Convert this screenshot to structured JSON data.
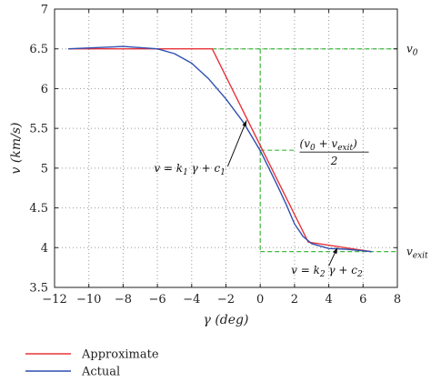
{
  "chart_data": {
    "type": "line",
    "xlabel": "γ (deg)",
    "ylabel": "v (km/s)",
    "xlim": [
      -12,
      8
    ],
    "ylim": [
      3.5,
      7
    ],
    "xticks": [
      -12,
      -10,
      -8,
      -6,
      -4,
      -2,
      0,
      2,
      4,
      6,
      8
    ],
    "yticks": [
      3.5,
      4,
      4.5,
      5,
      5.5,
      6,
      6.5,
      7
    ],
    "grid": true,
    "legend_position": "bottom-left, below plot",
    "series": [
      {
        "name": "Approximate",
        "color": "#e8333a",
        "x": [
          -11.2,
          -2.8,
          2.8,
          6.5
        ],
        "y": [
          6.5,
          6.5,
          4.07,
          3.95
        ]
      },
      {
        "name": "Actual",
        "color": "#2f4fb0",
        "x": [
          -11.2,
          -8,
          -6,
          -5,
          -4,
          -3,
          -2,
          -1,
          0,
          1,
          1.5,
          2,
          2.5,
          3,
          4,
          5,
          6.5
        ],
        "y": [
          6.5,
          6.53,
          6.5,
          6.44,
          6.32,
          6.12,
          5.87,
          5.58,
          5.22,
          4.78,
          4.55,
          4.3,
          4.14,
          4.05,
          3.99,
          3.98,
          3.95
        ]
      }
    ],
    "reference_lines": {
      "color": "#3fba3f",
      "style": "dashed",
      "v0": 6.5,
      "vexit": 3.95,
      "vmid": 5.225,
      "gamma_mid": 0,
      "labels": {
        "v0": "v0",
        "vexit": "vexit",
        "mid_numerator": "(v0 + vexit)",
        "mid_denominator": "2"
      }
    },
    "annotations": [
      {
        "text": "v = k1 γ + c1",
        "point": [
          -0.8,
          5.6
        ]
      },
      {
        "text": "v = k2 γ + c2",
        "point": [
          4.5,
          4.0
        ]
      }
    ]
  }
}
